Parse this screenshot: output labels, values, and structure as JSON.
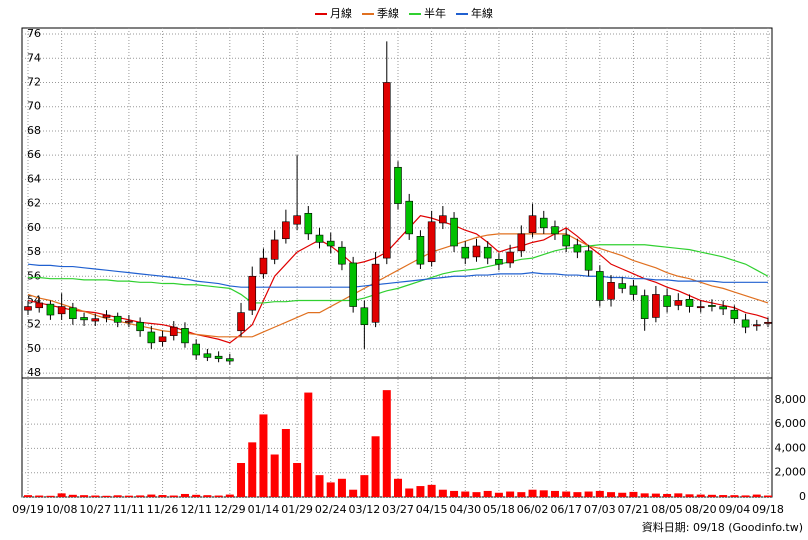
{
  "chart_data": [
    {
      "type": "candlestick",
      "categories": [
        "09/19",
        null,
        null,
        "10/08",
        null,
        null,
        "10/27",
        null,
        null,
        "11/11",
        null,
        null,
        "11/26",
        null,
        null,
        "12/11",
        null,
        null,
        "12/29",
        null,
        null,
        "01/14",
        null,
        null,
        "01/29",
        null,
        null,
        "02/24",
        null,
        null,
        "03/12",
        null,
        null,
        "03/27",
        null,
        null,
        "04/15",
        null,
        null,
        "04/30",
        null,
        null,
        "05/18",
        null,
        null,
        "06/02",
        null,
        null,
        "06/17",
        null,
        null,
        "07/03",
        null,
        null,
        "07/21",
        null,
        null,
        "08/05",
        null,
        null,
        "08/20",
        null,
        null,
        "09/04",
        null,
        null,
        "09/18"
      ],
      "open": [
        53.2,
        53.4,
        53.7,
        52.9,
        53.4,
        52.6,
        52.3,
        52.6,
        52.7,
        52.2,
        52.2,
        51.4,
        50.6,
        51.1,
        51.7,
        50.4,
        49.6,
        49.4,
        49.2,
        51.5,
        53.2,
        56.2,
        57.4,
        59.1,
        60.3,
        61.2,
        59.4,
        58.9,
        58.4,
        57.1,
        53.4,
        52.2,
        57.5,
        65,
        62.2,
        59.3,
        57.2,
        60.4,
        60.8,
        58.4,
        57.6,
        58.4,
        57.4,
        57.1,
        58.1,
        59.6,
        60.8,
        60.1,
        59.4,
        58.6,
        58.1,
        56.4,
        54.1,
        55.4,
        55.2,
        54.4,
        52.6,
        54.4,
        53.6,
        54.1,
        53.4,
        53.6,
        53.5,
        53.2,
        52.4,
        51.9,
        52.1
      ],
      "high": [
        54,
        54.3,
        54,
        54.6,
        53.8,
        53,
        52.9,
        53.2,
        53,
        52.8,
        52.6,
        51.9,
        51.5,
        52.3,
        52.2,
        50.8,
        50,
        49.8,
        49.6,
        53.8,
        56.8,
        58.3,
        59.8,
        61.5,
        66,
        61.8,
        60,
        59.6,
        58.9,
        57.6,
        54,
        58,
        75.4,
        65.5,
        62.8,
        59.8,
        61.4,
        61.8,
        61.3,
        58.9,
        59.1,
        58.9,
        57.9,
        58.6,
        60.2,
        62,
        61.4,
        60.6,
        59.9,
        59.1,
        58.6,
        56.9,
        56.1,
        55.9,
        55.7,
        54.9,
        55.2,
        55,
        54.6,
        54.5,
        54,
        54.1,
        54,
        53.6,
        52.9,
        52.4,
        52.6
      ],
      "low": [
        52.8,
        53,
        52.4,
        52.4,
        52,
        51.9,
        51.9,
        52.2,
        51.8,
        51.8,
        51,
        50,
        50.2,
        50.7,
        50.1,
        49.1,
        49,
        48.9,
        48.7,
        51,
        52.8,
        55.8,
        57,
        58.7,
        59.8,
        59,
        58.3,
        57.9,
        56.5,
        53,
        50,
        51.8,
        57,
        61.5,
        59,
        56.6,
        56.8,
        59.9,
        58,
        57,
        57.2,
        57,
        56.5,
        56.7,
        57.6,
        59.2,
        59.5,
        59,
        58,
        57.5,
        56,
        53.5,
        53.5,
        54.6,
        54,
        51.5,
        52.2,
        53,
        53.2,
        53,
        53,
        53.1,
        52.8,
        52.1,
        51.3,
        51.5,
        51.8
      ],
      "close": [
        53.5,
        53.8,
        52.8,
        53.5,
        52.5,
        52.4,
        52.5,
        52.8,
        52.2,
        52.3,
        51.5,
        50.5,
        51,
        51.8,
        50.5,
        49.5,
        49.3,
        49.2,
        49,
        53,
        56,
        57.5,
        59,
        60.5,
        61,
        59.5,
        58.8,
        58.5,
        57,
        53.5,
        52,
        57,
        72,
        62,
        59.5,
        57,
        60.5,
        61,
        58.5,
        57.5,
        58.5,
        57.5,
        57,
        58,
        59.5,
        61,
        60,
        59.5,
        58.5,
        58,
        56.5,
        54,
        55.5,
        55,
        54.5,
        52.5,
        54.5,
        53.5,
        54,
        53.5,
        53.5,
        53.5,
        53.3,
        52.5,
        51.8,
        52,
        52.2
      ],
      "up_color": "#e00000",
      "down_color": "#00c000",
      "series": [
        {
          "name": "月線",
          "color": "#e00000",
          "values": [
            54,
            53.8,
            53.6,
            53.4,
            53.2,
            53.1,
            53,
            52.8,
            52.6,
            52.4,
            52.2,
            52.1,
            52,
            51.8,
            51.5,
            51.2,
            51,
            50.8,
            50.5,
            51.2,
            52,
            54,
            56,
            57,
            58,
            58.5,
            59,
            58.5,
            57.8,
            57,
            57.2,
            57.5,
            58,
            59,
            60,
            61,
            60.8,
            60.5,
            60.2,
            59.8,
            59.5,
            58.8,
            58,
            58.3,
            58.5,
            58.8,
            59,
            59.5,
            60,
            59.3,
            58.5,
            57.8,
            57,
            56.6,
            56.2,
            55.8,
            55.5,
            55.1,
            54.8,
            54.4,
            54,
            53.8,
            53.6,
            53.4,
            53,
            52.8,
            52.5
          ]
        },
        {
          "name": "季線",
          "color": "#e07020",
          "values": [
            54.5,
            54.2,
            54,
            53.7,
            53.4,
            53.1,
            52.8,
            52.5,
            52.3,
            52.1,
            51.9,
            51.7,
            51.5,
            51.4,
            51.3,
            51.2,
            51.1,
            51,
            51,
            51,
            51,
            51.4,
            51.8,
            52.2,
            52.6,
            53,
            53,
            53.5,
            54,
            54.5,
            55,
            55.5,
            56,
            56.5,
            57,
            57.5,
            58,
            58.3,
            58.6,
            58.9,
            59.2,
            59.4,
            59.5,
            59.5,
            59.5,
            59.5,
            59.5,
            59.5,
            59.5,
            59,
            58.5,
            58.3,
            58,
            57.7,
            57.3,
            57,
            56.7,
            56.3,
            56,
            55.8,
            55.5,
            55.2,
            55,
            54.7,
            54.4,
            54.1,
            53.8
          ]
        },
        {
          "name": "半年",
          "color": "#30d030",
          "values": [
            55.9,
            55.9,
            55.8,
            55.8,
            55.8,
            55.7,
            55.7,
            55.7,
            55.6,
            55.6,
            55.5,
            55.5,
            55.4,
            55.4,
            55.3,
            55.3,
            55.2,
            55.1,
            55,
            54.5,
            53.8,
            53.8,
            53.9,
            53.9,
            54,
            54,
            54,
            54,
            54,
            54,
            54.2,
            54.5,
            54.8,
            55,
            55.3,
            55.6,
            55.9,
            56.2,
            56.4,
            56.5,
            56.6,
            56.8,
            57,
            57.2,
            57.4,
            57.5,
            57.8,
            58.1,
            58.3,
            58.4,
            58.5,
            58.6,
            58.6,
            58.6,
            58.6,
            58.6,
            58.5,
            58.4,
            58.3,
            58.2,
            58,
            57.8,
            57.6,
            57.3,
            57,
            56.5,
            56
          ]
        },
        {
          "name": "年線",
          "color": "#2060d0",
          "values": [
            57,
            56.9,
            56.9,
            56.8,
            56.8,
            56.7,
            56.6,
            56.5,
            56.4,
            56.3,
            56.2,
            56.1,
            56,
            55.9,
            55.8,
            55.6,
            55.5,
            55.4,
            55.2,
            55.1,
            55.1,
            55.1,
            55.1,
            55.1,
            55.1,
            55.1,
            55.1,
            55.1,
            55.1,
            55.1,
            55.2,
            55.3,
            55.4,
            55.5,
            55.6,
            55.7,
            55.8,
            55.9,
            56,
            56,
            56.1,
            56.1,
            56.2,
            56.2,
            56.2,
            56.3,
            56.2,
            56.2,
            56.1,
            56.1,
            56,
            56,
            55.9,
            55.9,
            55.8,
            55.8,
            55.7,
            55.7,
            55.6,
            55.6,
            55.6,
            55.6,
            55.5,
            55.5,
            55.5,
            55.5,
            55.5
          ]
        }
      ],
      "ylim": [
        47.6,
        76.5
      ],
      "yticks": [
        48,
        50,
        52,
        54,
        56,
        58,
        60,
        62,
        64,
        66,
        68,
        70,
        72,
        74,
        76
      ],
      "grid": true
    },
    {
      "type": "bar",
      "color": "#ff0000",
      "values": [
        150,
        120,
        100,
        300,
        180,
        150,
        120,
        100,
        140,
        110,
        130,
        200,
        160,
        120,
        250,
        180,
        150,
        120,
        200,
        2800,
        4500,
        6800,
        3500,
        5600,
        2800,
        8600,
        1800,
        1200,
        1500,
        600,
        1800,
        5000,
        8800,
        1500,
        700,
        900,
        1000,
        600,
        500,
        450,
        400,
        500,
        350,
        450,
        400,
        600,
        550,
        500,
        450,
        400,
        450,
        500,
        400,
        350,
        420,
        300,
        280,
        250,
        300,
        220,
        200,
        180,
        160,
        150,
        130,
        200,
        120
      ],
      "ylim": [
        0,
        9800
      ],
      "yticks": [
        {
          "value": 0,
          "label": "0"
        },
        {
          "value": 2000,
          "label": "2,000"
        },
        {
          "value": 4000,
          "label": "4,000"
        },
        {
          "value": 6000,
          "label": "6,000"
        },
        {
          "value": 8000,
          "label": "8,000"
        }
      ],
      "grid": true
    }
  ],
  "footer": "資料日期: 09/18  (Goodinfo.tw)"
}
